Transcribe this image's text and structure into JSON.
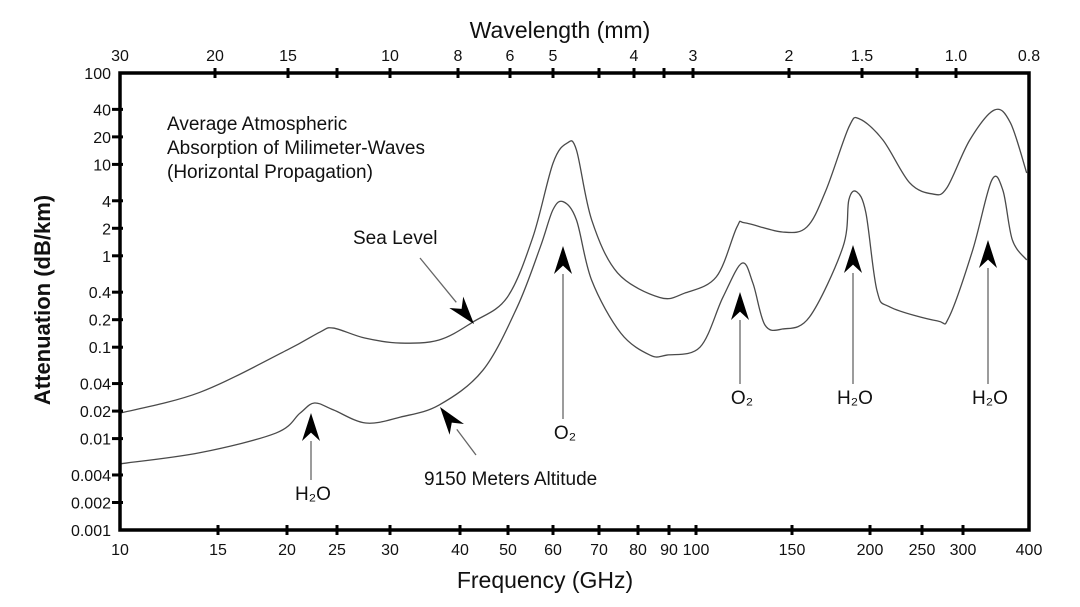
{
  "chart_data": {
    "type": "line",
    "xlabel": "Frequency (GHz)",
    "ylabel": "Attenuation (dB/km)",
    "top_axis_label": "Wavelength (mm)",
    "x_scale": "log",
    "y_scale": "log",
    "xlim": [
      10,
      400
    ],
    "ylim": [
      0.001,
      100
    ],
    "grid": false,
    "x_ticks": [
      "10",
      "15",
      "20",
      "25",
      "30",
      "40",
      "50",
      "60",
      "70",
      "80",
      "90",
      "100",
      "150",
      "200",
      "250",
      "300",
      "400"
    ],
    "y_ticks": [
      "100",
      "40",
      "20",
      "10",
      "4",
      "2",
      "1",
      "0.4",
      "0.2",
      "0.1",
      "0.04",
      "0.02",
      "0.01",
      "0.004",
      "0.002",
      "0.001"
    ],
    "top_ticks": [
      "30",
      "20",
      "15",
      "10",
      "8",
      "6",
      "5",
      "4",
      "3",
      "2",
      "1.5",
      "1.0",
      "0.8"
    ],
    "title_lines": [
      "Average Atmospheric",
      "Absorption of Milimeter-Waves",
      "(Horizontal Propagation)"
    ],
    "series": [
      {
        "name": "Sea Level",
        "x": [
          10,
          13.9,
          20,
          23.2,
          24.6,
          27.5,
          31.3,
          36.7,
          42.5,
          49.8,
          55.3,
          60,
          62.9,
          64.9,
          68.3,
          74.6,
          86.9,
          95.6,
          109,
          118.9,
          123,
          144,
          158.5,
          170,
          185,
          192.5,
          211.4,
          237,
          262,
          279,
          309,
          344,
          369,
          396
        ],
        "y": [
          0.019,
          0.032,
          0.093,
          0.147,
          0.162,
          0.126,
          0.111,
          0.12,
          0.189,
          0.35,
          1.6,
          10.3,
          17.1,
          14.4,
          2.47,
          0.65,
          0.35,
          0.39,
          0.59,
          2.07,
          2.29,
          1.82,
          2.07,
          5.2,
          25.6,
          31.4,
          18.5,
          6.3,
          4.75,
          5.5,
          18.5,
          39.4,
          28.4,
          8.05
        ]
      },
      {
        "name": "9150 Meters Altitude",
        "x": [
          10,
          13.9,
          19.1,
          21.2,
          22.6,
          24.6,
          27.6,
          31.3,
          36.7,
          44.5,
          51.9,
          57.0,
          60,
          62.1,
          64.9,
          68.3,
          75.4,
          83.7,
          89.3,
          101.7,
          112,
          121.4,
          127.2,
          133.8,
          144,
          160,
          181,
          185,
          190.5,
          197,
          206,
          218,
          267.6,
          282,
          313,
          340,
          357,
          372,
          396
        ],
        "y": [
          0.0053,
          0.007,
          0.0115,
          0.019,
          0.0245,
          0.0206,
          0.0148,
          0.0172,
          0.0233,
          0.056,
          0.275,
          1.25,
          3.2,
          3.9,
          2.47,
          0.54,
          0.143,
          0.082,
          0.082,
          0.1,
          0.35,
          0.83,
          0.5,
          0.175,
          0.158,
          0.214,
          1.25,
          4.1,
          5.0,
          2.95,
          0.42,
          0.275,
          0.194,
          0.214,
          1.16,
          6.7,
          5.2,
          1.49,
          0.9
        ]
      }
    ],
    "annotations": [
      {
        "label": "Sea Level",
        "kind": "series-label"
      },
      {
        "label": "9150 Meters Altitude",
        "kind": "series-label"
      },
      {
        "label": "H₂O",
        "x": 22.2,
        "kind": "absorption-line"
      },
      {
        "label": "O₂",
        "x": 60,
        "kind": "absorption-line"
      },
      {
        "label": "O₂",
        "x": 119,
        "kind": "absorption-line"
      },
      {
        "label": "H₂O",
        "x": 183,
        "kind": "absorption-line"
      },
      {
        "label": "H₂O",
        "x": 325,
        "kind": "absorption-line"
      }
    ]
  }
}
